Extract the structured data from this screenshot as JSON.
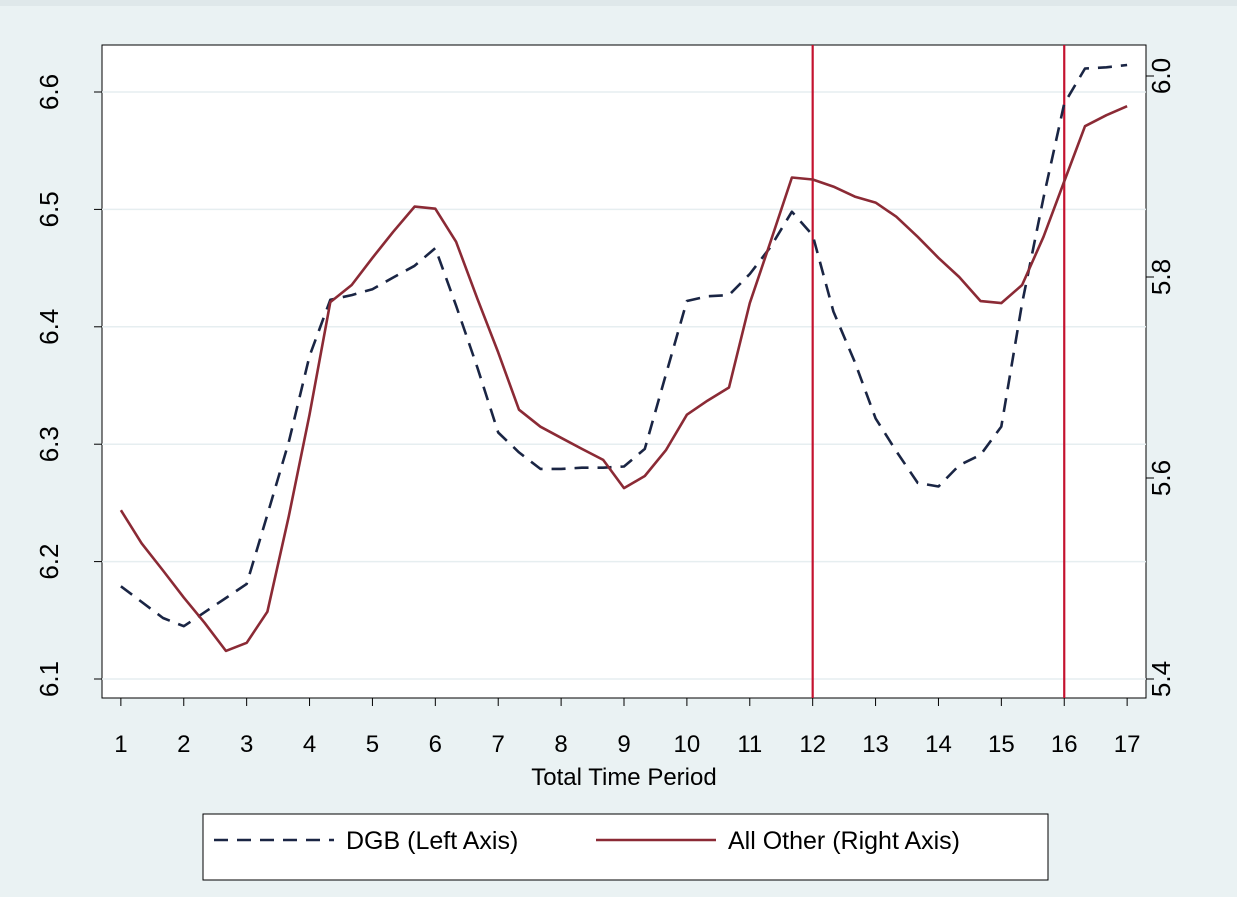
{
  "chart_data": {
    "type": "line",
    "xlabel": "Total Time Period",
    "x_ticks": [
      1,
      2,
      3,
      4,
      5,
      6,
      7,
      8,
      9,
      10,
      11,
      12,
      13,
      14,
      15,
      16,
      17
    ],
    "xlim": [
      0.7,
      17.3
    ],
    "y_left": {
      "ticks": [
        "6.1",
        "6.2",
        "6.3",
        "6.4",
        "6.5",
        "6.6"
      ],
      "ylim": [
        6.1,
        6.6
      ]
    },
    "y_right": {
      "ticks": [
        "5.4",
        "5.6",
        "5.8",
        "6.0"
      ],
      "ylim": [
        5.4,
        6.0
      ]
    },
    "grid": "horizontal",
    "vlines": [
      {
        "x": 12,
        "color": "#c4122f"
      },
      {
        "x": 16,
        "color": "#c4122f"
      }
    ],
    "legend_placement": "bottom",
    "series": [
      {
        "name": "DGB (Left Axis)",
        "axis": "left",
        "style": "dashed",
        "color": "#1a2544",
        "x": [
          1,
          1.67,
          2,
          2.67,
          3,
          3.33,
          3.67,
          4,
          4.33,
          4.67,
          5,
          5.33,
          5.67,
          6,
          6.33,
          6.67,
          7,
          7.33,
          7.67,
          8,
          8.33,
          8.67,
          9,
          9.33,
          9.67,
          10,
          10.33,
          10.67,
          11,
          11.33,
          11.67,
          12,
          12.33,
          12.67,
          13,
          13.33,
          13.67,
          14,
          14.33,
          14.67,
          15,
          15.33,
          15.67,
          16,
          16.33,
          16.67,
          17
        ],
        "values": [
          6.179,
          6.152,
          6.145,
          6.169,
          6.181,
          6.24,
          6.302,
          6.375,
          6.423,
          6.427,
          6.432,
          6.442,
          6.452,
          6.467,
          6.418,
          6.365,
          6.31,
          6.293,
          6.279,
          6.279,
          6.28,
          6.28,
          6.281,
          6.296,
          6.36,
          6.422,
          6.426,
          6.427,
          6.445,
          6.468,
          6.498,
          6.478,
          6.413,
          6.37,
          6.322,
          6.294,
          6.267,
          6.264,
          6.282,
          6.291,
          6.315,
          6.42,
          6.51,
          6.59,
          6.62,
          6.621,
          6.623
        ]
      },
      {
        "name": "All Other (Right Axis)",
        "axis": "right",
        "style": "solid",
        "color": "#8b2a35",
        "x": [
          1,
          1.33,
          1.67,
          2,
          2.33,
          2.67,
          3,
          3.33,
          3.67,
          4,
          4.33,
          4.67,
          5,
          5.33,
          5.67,
          6,
          6.33,
          6.67,
          7,
          7.33,
          7.67,
          8,
          8.33,
          8.67,
          9,
          9.33,
          9.67,
          10,
          10.33,
          10.67,
          11,
          11.33,
          11.67,
          12,
          12.33,
          12.67,
          13,
          13.33,
          13.67,
          14,
          14.33,
          14.67,
          15,
          15.33,
          15.67,
          16,
          16.33,
          16.67,
          17
        ],
        "values": [
          5.568,
          5.535,
          5.508,
          5.481,
          5.456,
          5.428,
          5.436,
          5.467,
          5.562,
          5.663,
          5.775,
          5.792,
          5.819,
          5.845,
          5.87,
          5.868,
          5.835,
          5.778,
          5.725,
          5.668,
          5.651,
          5.64,
          5.629,
          5.618,
          5.59,
          5.602,
          5.628,
          5.663,
          5.677,
          5.69,
          5.774,
          5.835,
          5.899,
          5.897,
          5.89,
          5.88,
          5.874,
          5.86,
          5.84,
          5.819,
          5.8,
          5.776,
          5.774,
          5.792,
          5.84,
          5.895,
          5.95,
          5.961,
          5.97
        ]
      }
    ],
    "legend": [
      {
        "label": "DGB (Left Axis)",
        "style": "dashed",
        "color": "#1a2544"
      },
      {
        "label": "All Other (Right Axis)",
        "style": "solid",
        "color": "#8b2a35"
      }
    ]
  }
}
